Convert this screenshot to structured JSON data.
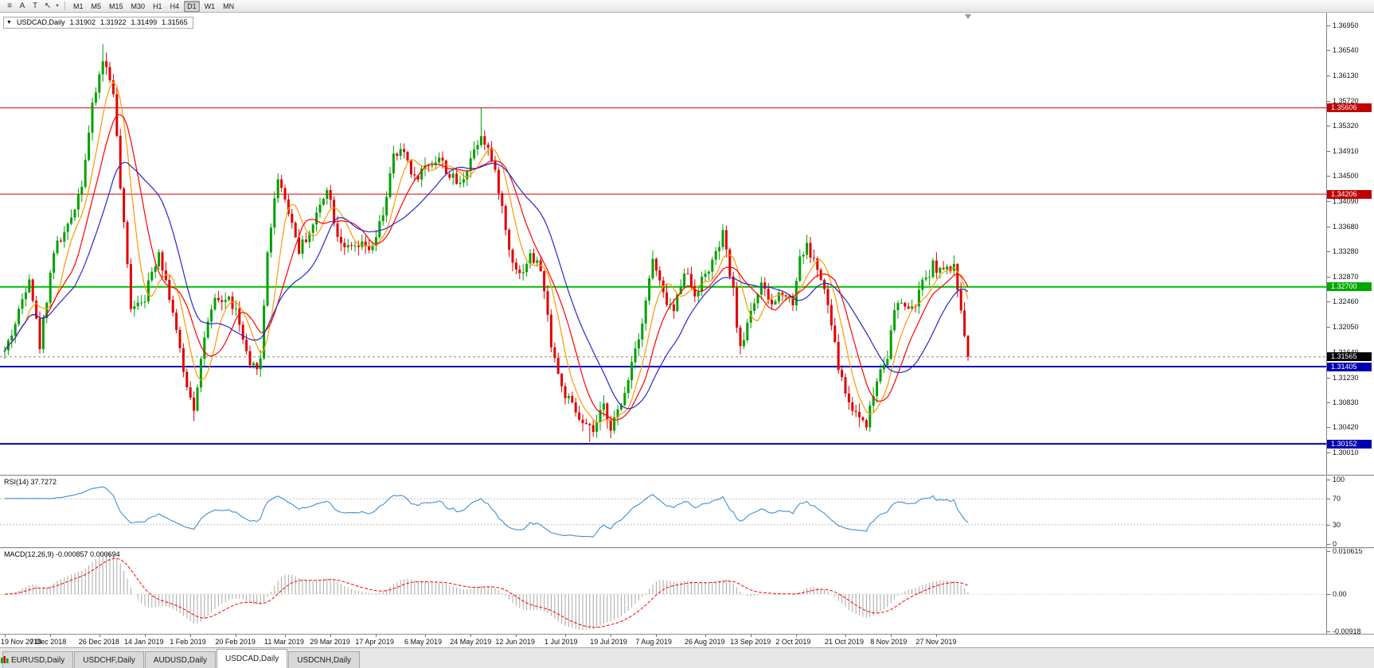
{
  "toolbar": {
    "icons": [
      {
        "name": "chart-list-icon",
        "glyph": "≡"
      },
      {
        "name": "annotate-a-icon",
        "glyph": "A"
      },
      {
        "name": "text-tool-icon",
        "glyph": "T"
      },
      {
        "name": "crosshair-tool-icon",
        "glyph": "↖"
      },
      {
        "name": "tool-dropdown-icon",
        "glyph": "▾"
      }
    ],
    "timeframes": [
      "M1",
      "M5",
      "M15",
      "M30",
      "H1",
      "H4",
      "D1",
      "W1",
      "MN"
    ],
    "active_timeframe": "D1"
  },
  "chart_header": {
    "collapse_icon": "▼",
    "symbol": "USDCAD,Daily",
    "open": "1.31902",
    "high": "1.31922",
    "low": "1.31499",
    "close": "1.31565"
  },
  "price_axis": {
    "ticks": [
      "1.36950",
      "1.36540",
      "1.36130",
      "1.35720",
      "1.35320",
      "1.34910",
      "1.34500",
      "1.34090",
      "1.33680",
      "1.33280",
      "1.32870",
      "1.32460",
      "1.32050",
      "1.31640",
      "1.31230",
      "1.30830",
      "1.30420",
      "1.30010"
    ]
  },
  "rsi_pane": {
    "label": "RSI(14) 37.7272",
    "period": 14,
    "last_value": 37.7272,
    "axis_labels": [
      "100",
      "70",
      "30",
      "0"
    ],
    "upper_level": 70,
    "lower_level": 30
  },
  "macd_pane": {
    "label": "MACD(12,26,9) -0.000857 0.000694",
    "fast": 12,
    "slow": 26,
    "signal": 9,
    "last_main": -0.000857,
    "last_signal": 0.000694,
    "axis_labels": [
      "0.010615",
      "0.00",
      "-0.00918"
    ],
    "scale_max": 0.010615,
    "scale_min": -0.00918
  },
  "date_axis": [
    {
      "label": "19 Nov 2018",
      "bar": 0
    },
    {
      "label": "7 Dec 2018",
      "bar": 13
    },
    {
      "label": "26 Dec 2018",
      "bar": 27
    },
    {
      "label": "14 Jan 2019",
      "bar": 40
    },
    {
      "label": "1 Feb 2019",
      "bar": 53
    },
    {
      "label": "20 Feb 2019",
      "bar": 66
    },
    {
      "label": "11 Mar 2019",
      "bar": 80
    },
    {
      "label": "29 Mar 2019",
      "bar": 93
    },
    {
      "label": "17 Apr 2019",
      "bar": 106
    },
    {
      "label": "6 May 2019",
      "bar": 120
    },
    {
      "label": "24 May 2019",
      "bar": 133
    },
    {
      "label": "12 Jun 2019",
      "bar": 146
    },
    {
      "label": "1 Jul 2019",
      "bar": 160
    },
    {
      "label": "19 Jul 2019",
      "bar": 173
    },
    {
      "label": "7 Aug 2019",
      "bar": 186
    },
    {
      "label": "26 Aug 2019",
      "bar": 200
    },
    {
      "label": "13 Sep 2019",
      "bar": 213
    },
    {
      "label": "2 Oct 2019",
      "bar": 226
    },
    {
      "label": "21 Oct 2019",
      "bar": 240
    },
    {
      "label": "8 Nov 2019",
      "bar": 253
    },
    {
      "label": "27 Nov 2019",
      "bar": 266
    }
  ],
  "tabs": [
    {
      "label": "EURUSD,Daily",
      "active": false
    },
    {
      "label": "USDCHF,Daily",
      "active": false
    },
    {
      "label": "AUDUSD,Daily",
      "active": false
    },
    {
      "label": "USDCAD,Daily",
      "active": true
    },
    {
      "label": "USDCNH,Daily",
      "active": false
    }
  ],
  "colors": {
    "up_candle": "#00a000",
    "down_candle": "#e00000",
    "ma_fast": "#ff9900",
    "ma_mid": "#ff0000",
    "ma_slow": "#2828cc",
    "rsi_line": "#3f8fd4",
    "macd_histogram": "#a8a8a8",
    "macd_signal": "#ff0000",
    "current_price_bg": "#000000"
  },
  "chart_data": {
    "type": "candlestick",
    "title": "USDCAD,Daily",
    "bars": 276,
    "x_first_date": "19 Nov 2018",
    "x_last_visible_date": "27 Nov 2019",
    "price_scale_top": 1.3715,
    "price_scale_bottom": 1.2965,
    "last_bar": {
      "open": 1.31902,
      "high": 1.31922,
      "low": 1.31499,
      "close": 1.31565
    },
    "close_anchors": [
      [
        0,
        1.3165
      ],
      [
        3,
        1.321
      ],
      [
        7,
        1.329
      ],
      [
        10,
        1.3175
      ],
      [
        14,
        1.333
      ],
      [
        18,
        1.3365
      ],
      [
        22,
        1.344
      ],
      [
        25,
        1.356
      ],
      [
        28,
        1.364
      ],
      [
        31,
        1.359
      ],
      [
        33,
        1.343
      ],
      [
        36,
        1.324
      ],
      [
        40,
        1.3255
      ],
      [
        44,
        1.333
      ],
      [
        48,
        1.323
      ],
      [
        51,
        1.313
      ],
      [
        54,
        1.3075
      ],
      [
        57,
        1.319
      ],
      [
        60,
        1.3245
      ],
      [
        64,
        1.325
      ],
      [
        66,
        1.323
      ],
      [
        70,
        1.3135
      ],
      [
        73,
        1.315
      ],
      [
        75,
        1.333
      ],
      [
        78,
        1.345
      ],
      [
        81,
        1.3395
      ],
      [
        84,
        1.333
      ],
      [
        88,
        1.337
      ],
      [
        92,
        1.3435
      ],
      [
        95,
        1.3355
      ],
      [
        98,
        1.333
      ],
      [
        102,
        1.3335
      ],
      [
        105,
        1.333
      ],
      [
        108,
        1.339
      ],
      [
        111,
        1.348
      ],
      [
        114,
        1.349
      ],
      [
        117,
        1.3445
      ],
      [
        120,
        1.3465
      ],
      [
        124,
        1.348
      ],
      [
        127,
        1.345
      ],
      [
        130,
        1.3435
      ],
      [
        133,
        1.348
      ],
      [
        136,
        1.352
      ],
      [
        138,
        1.3495
      ],
      [
        141,
        1.343
      ],
      [
        144,
        1.333
      ],
      [
        147,
        1.329
      ],
      [
        150,
        1.332
      ],
      [
        153,
        1.33
      ],
      [
        156,
        1.318
      ],
      [
        159,
        1.3105
      ],
      [
        162,
        1.3075
      ],
      [
        165,
        1.3045
      ],
      [
        168,
        1.3035
      ],
      [
        171,
        1.3075
      ],
      [
        173,
        1.3045
      ],
      [
        176,
        1.3075
      ],
      [
        179,
        1.315
      ],
      [
        182,
        1.3215
      ],
      [
        185,
        1.3315
      ],
      [
        188,
        1.3255
      ],
      [
        191,
        1.323
      ],
      [
        194,
        1.33
      ],
      [
        197,
        1.326
      ],
      [
        200,
        1.329
      ],
      [
        203,
        1.332
      ],
      [
        205,
        1.3355
      ],
      [
        208,
        1.326
      ],
      [
        210,
        1.3165
      ],
      [
        213,
        1.3235
      ],
      [
        216,
        1.327
      ],
      [
        219,
        1.324
      ],
      [
        222,
        1.3265
      ],
      [
        225,
        1.3245
      ],
      [
        227,
        1.332
      ],
      [
        229,
        1.3335
      ],
      [
        232,
        1.33
      ],
      [
        235,
        1.324
      ],
      [
        238,
        1.314
      ],
      [
        241,
        1.308
      ],
      [
        244,
        1.306
      ],
      [
        246,
        1.305
      ],
      [
        248,
        1.3095
      ],
      [
        250,
        1.314
      ],
      [
        252,
        1.316
      ],
      [
        254,
        1.323
      ],
      [
        256,
        1.3245
      ],
      [
        259,
        1.323
      ],
      [
        262,
        1.3275
      ],
      [
        265,
        1.3305
      ],
      [
        268,
        1.3295
      ],
      [
        271,
        1.33
      ],
      [
        273,
        1.324
      ],
      [
        274,
        1.31902
      ],
      [
        275,
        1.31565
      ]
    ],
    "wick_overrides": {
      "28": {
        "h": 1.3664
      },
      "54": {
        "l": 1.3052
      },
      "136": {
        "h": 1.35605
      },
      "167": {
        "l": 1.3018
      },
      "244": {
        "l": 1.3042
      },
      "274": {
        "c": 1.31902
      },
      "275": {
        "o": 1.31902,
        "h": 1.31922,
        "l": 1.31499,
        "c": 1.31565
      }
    },
    "horizontal_levels": [
      {
        "value": 1.35606,
        "label": "1.35606",
        "color": "#d40000",
        "label_bg": "#c00000",
        "width": 1
      },
      {
        "value": 1.34206,
        "label": "1.34206",
        "color": "#d40000",
        "label_bg": "#c00000",
        "width": 1
      },
      {
        "value": 1.327,
        "label": "1.32700",
        "color": "#00c000",
        "label_bg": "#00a800",
        "width": 2
      },
      {
        "value": 1.31405,
        "label": "1.31405",
        "color": "#0000bb",
        "label_bg": "#0000b0",
        "width": 2
      },
      {
        "value": 1.30152,
        "label": "1.30152",
        "color": "#0000bb",
        "label_bg": "#0000b0",
        "width": 2
      }
    ],
    "current_price": {
      "value": 1.31565,
      "label": "1.31565",
      "label_bg": "#000000"
    },
    "moving_averages": [
      {
        "period": 7,
        "color": "#ff9900"
      },
      {
        "period": 12,
        "color": "#ff0000"
      },
      {
        "period": 21,
        "color": "#2828cc"
      }
    ],
    "indicators": [
      "RSI(14)",
      "MACD(12,26,9)"
    ]
  }
}
